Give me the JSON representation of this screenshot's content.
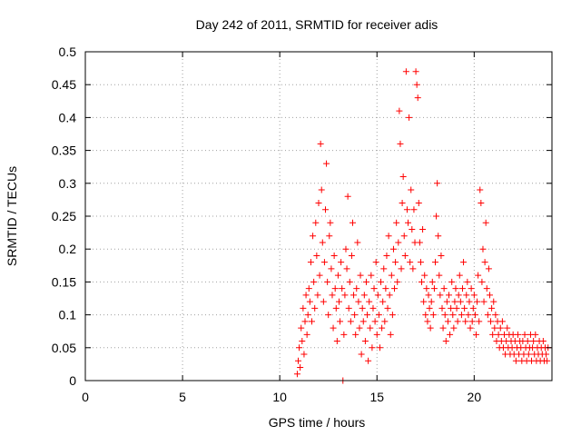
{
  "chart_data": {
    "type": "scatter",
    "title": "Day 242 of 2011, SRMTID for receiver adis",
    "xlabel": "GPS time / hours",
    "ylabel": "SRMTID / TECUs",
    "xlim": [
      0,
      24
    ],
    "ylim": [
      0,
      0.5
    ],
    "xticks": [
      0,
      5,
      10,
      15,
      20
    ],
    "yticks": [
      0,
      0.05,
      0.1,
      0.15,
      0.2,
      0.25,
      0.3,
      0.35,
      0.4,
      0.45,
      0.5
    ],
    "xtick_labels": [
      "0",
      "5",
      "10",
      "15",
      "20"
    ],
    "ytick_labels": [
      "0",
      "0.05",
      "0.1",
      "0.15",
      "0.2",
      "0.25",
      "0.3",
      "0.35",
      "0.4",
      "0.45",
      "0.5"
    ],
    "grid": true,
    "marker": "+",
    "series": [
      {
        "name": "SRMTID",
        "color": "#ff0000",
        "points": [
          [
            10.9,
            0.01
          ],
          [
            10.95,
            0.03
          ],
          [
            11.0,
            0.05
          ],
          [
            11.05,
            0.02
          ],
          [
            11.1,
            0.08
          ],
          [
            11.15,
            0.06
          ],
          [
            11.2,
            0.11
          ],
          [
            11.25,
            0.04
          ],
          [
            11.3,
            0.09
          ],
          [
            11.35,
            0.13
          ],
          [
            11.4,
            0.07
          ],
          [
            11.45,
            0.1
          ],
          [
            11.5,
            0.14
          ],
          [
            11.55,
            0.12
          ],
          [
            11.6,
            0.18
          ],
          [
            11.65,
            0.09
          ],
          [
            11.7,
            0.22
          ],
          [
            11.75,
            0.15
          ],
          [
            11.8,
            0.11
          ],
          [
            11.85,
            0.24
          ],
          [
            11.9,
            0.19
          ],
          [
            11.95,
            0.13
          ],
          [
            12.0,
            0.27
          ],
          [
            12.05,
            0.16
          ],
          [
            12.1,
            0.36
          ],
          [
            12.15,
            0.29
          ],
          [
            12.2,
            0.21
          ],
          [
            12.25,
            0.12
          ],
          [
            12.3,
            0.18
          ],
          [
            12.35,
            0.26
          ],
          [
            12.4,
            0.33
          ],
          [
            12.45,
            0.15
          ],
          [
            12.5,
            0.1
          ],
          [
            12.55,
            0.22
          ],
          [
            12.6,
            0.24
          ],
          [
            12.65,
            0.17
          ],
          [
            12.7,
            0.13
          ],
          [
            12.75,
            0.08
          ],
          [
            12.8,
            0.19
          ],
          [
            12.85,
            0.14
          ],
          [
            12.9,
            0.11
          ],
          [
            12.95,
            0.06
          ],
          [
            13.0,
            0.16
          ],
          [
            13.05,
            0.12
          ],
          [
            13.1,
            0.09
          ],
          [
            13.15,
            0.18
          ],
          [
            13.2,
            0.14
          ],
          [
            13.25,
            0.0
          ],
          [
            13.3,
            0.07
          ],
          [
            13.35,
            0.13
          ],
          [
            13.4,
            0.2
          ],
          [
            13.45,
            0.17
          ],
          [
            13.5,
            0.28
          ],
          [
            13.55,
            0.11
          ],
          [
            13.6,
            0.15
          ],
          [
            13.65,
            0.09
          ],
          [
            13.7,
            0.19
          ],
          [
            13.75,
            0.24
          ],
          [
            13.8,
            0.13
          ],
          [
            13.85,
            0.1
          ],
          [
            13.9,
            0.07
          ],
          [
            13.95,
            0.14
          ],
          [
            14.0,
            0.21
          ],
          [
            14.05,
            0.12
          ],
          [
            14.1,
            0.08
          ],
          [
            14.15,
            0.16
          ],
          [
            14.2,
            0.04
          ],
          [
            14.25,
            0.11
          ],
          [
            14.3,
            0.09
          ],
          [
            14.35,
            0.13
          ],
          [
            14.4,
            0.06
          ],
          [
            14.45,
            0.15
          ],
          [
            14.5,
            0.1
          ],
          [
            14.55,
            0.03
          ],
          [
            14.6,
            0.12
          ],
          [
            14.65,
            0.08
          ],
          [
            14.7,
            0.16
          ],
          [
            14.75,
            0.05
          ],
          [
            14.8,
            0.11
          ],
          [
            14.85,
            0.14
          ],
          [
            14.9,
            0.09
          ],
          [
            14.95,
            0.18
          ],
          [
            15.0,
            0.07
          ],
          [
            15.05,
            0.13
          ],
          [
            15.1,
            0.1
          ],
          [
            15.15,
            0.05
          ],
          [
            15.2,
            0.15
          ],
          [
            15.25,
            0.08
          ],
          [
            15.3,
            0.12
          ],
          [
            15.35,
            0.17
          ],
          [
            15.4,
            0.09
          ],
          [
            15.45,
            0.14
          ],
          [
            15.5,
            0.19
          ],
          [
            15.55,
            0.11
          ],
          [
            15.6,
            0.22
          ],
          [
            15.65,
            0.13
          ],
          [
            15.7,
            0.07
          ],
          [
            15.75,
            0.16
          ],
          [
            15.8,
            0.1
          ],
          [
            15.85,
            0.2
          ],
          [
            15.9,
            0.14
          ],
          [
            15.95,
            0.18
          ],
          [
            16.0,
            0.24
          ],
          [
            16.05,
            0.15
          ],
          [
            16.1,
            0.21
          ],
          [
            16.15,
            0.41
          ],
          [
            16.2,
            0.36
          ],
          [
            16.25,
            0.17
          ],
          [
            16.3,
            0.27
          ],
          [
            16.35,
            0.31
          ],
          [
            16.4,
            0.22
          ],
          [
            16.45,
            0.19
          ],
          [
            16.5,
            0.47
          ],
          [
            16.55,
            0.26
          ],
          [
            16.6,
            0.24
          ],
          [
            16.65,
            0.4
          ],
          [
            16.7,
            0.18
          ],
          [
            16.75,
            0.29
          ],
          [
            16.8,
            0.23
          ],
          [
            16.85,
            0.17
          ],
          [
            16.9,
            0.26
          ],
          [
            16.95,
            0.21
          ],
          [
            17.0,
            0.47
          ],
          [
            17.05,
            0.45
          ],
          [
            17.1,
            0.43
          ],
          [
            17.15,
            0.27
          ],
          [
            17.2,
            0.21
          ],
          [
            17.25,
            0.18
          ],
          [
            17.3,
            0.15
          ],
          [
            17.35,
            0.23
          ],
          [
            17.4,
            0.12
          ],
          [
            17.45,
            0.16
          ],
          [
            17.5,
            0.1
          ],
          [
            17.55,
            0.14
          ],
          [
            17.6,
            0.09
          ],
          [
            17.65,
            0.13
          ],
          [
            17.7,
            0.11
          ],
          [
            17.75,
            0.08
          ],
          [
            17.8,
            0.12
          ],
          [
            17.85,
            0.15
          ],
          [
            17.9,
            0.1
          ],
          [
            17.95,
            0.14
          ],
          [
            18.0,
            0.18
          ],
          [
            18.05,
            0.25
          ],
          [
            18.1,
            0.3
          ],
          [
            18.15,
            0.22
          ],
          [
            18.2,
            0.16
          ],
          [
            18.25,
            0.13
          ],
          [
            18.3,
            0.19
          ],
          [
            18.35,
            0.11
          ],
          [
            18.4,
            0.08
          ],
          [
            18.45,
            0.14
          ],
          [
            18.5,
            0.1
          ],
          [
            18.55,
            0.06
          ],
          [
            18.6,
            0.12
          ],
          [
            18.65,
            0.09
          ],
          [
            18.7,
            0.13
          ],
          [
            18.75,
            0.07
          ],
          [
            18.8,
            0.11
          ],
          [
            18.85,
            0.15
          ],
          [
            18.9,
            0.1
          ],
          [
            18.95,
            0.08
          ],
          [
            19.0,
            0.12
          ],
          [
            19.05,
            0.14
          ],
          [
            19.1,
            0.11
          ],
          [
            19.15,
            0.09
          ],
          [
            19.2,
            0.13
          ],
          [
            19.25,
            0.16
          ],
          [
            19.3,
            0.12
          ],
          [
            19.35,
            0.1
          ],
          [
            19.4,
            0.14
          ],
          [
            19.45,
            0.18
          ],
          [
            19.5,
            0.11
          ],
          [
            19.55,
            0.09
          ],
          [
            19.6,
            0.13
          ],
          [
            19.65,
            0.15
          ],
          [
            19.7,
            0.1
          ],
          [
            19.75,
            0.12
          ],
          [
            19.8,
            0.08
          ],
          [
            19.85,
            0.14
          ],
          [
            19.9,
            0.09
          ],
          [
            19.95,
            0.11
          ],
          [
            20.0,
            0.13
          ],
          [
            20.05,
            0.1
          ],
          [
            20.1,
            0.07
          ],
          [
            20.15,
            0.12
          ],
          [
            20.2,
            0.16
          ],
          [
            20.25,
            0.09
          ],
          [
            20.3,
            0.29
          ],
          [
            20.35,
            0.27
          ],
          [
            20.4,
            0.15
          ],
          [
            20.45,
            0.2
          ],
          [
            20.5,
            0.12
          ],
          [
            20.55,
            0.18
          ],
          [
            20.6,
            0.24
          ],
          [
            20.65,
            0.14
          ],
          [
            20.7,
            0.1
          ],
          [
            20.75,
            0.17
          ],
          [
            20.8,
            0.13
          ],
          [
            20.85,
            0.09
          ],
          [
            20.9,
            0.11
          ],
          [
            20.95,
            0.07
          ],
          [
            21.0,
            0.12
          ],
          [
            21.05,
            0.08
          ],
          [
            21.1,
            0.1
          ],
          [
            21.15,
            0.06
          ],
          [
            21.2,
            0.09
          ],
          [
            21.25,
            0.07
          ],
          [
            21.3,
            0.05
          ],
          [
            21.35,
            0.08
          ],
          [
            21.4,
            0.06
          ],
          [
            21.45,
            0.09
          ],
          [
            21.5,
            0.05
          ],
          [
            21.55,
            0.07
          ],
          [
            21.6,
            0.04
          ],
          [
            21.65,
            0.06
          ],
          [
            21.7,
            0.08
          ],
          [
            21.75,
            0.05
          ],
          [
            21.8,
            0.07
          ],
          [
            21.85,
            0.04
          ],
          [
            21.9,
            0.06
          ],
          [
            21.95,
            0.05
          ],
          [
            22.0,
            0.07
          ],
          [
            22.05,
            0.04
          ],
          [
            22.1,
            0.06
          ],
          [
            22.15,
            0.03
          ],
          [
            22.2,
            0.05
          ],
          [
            22.25,
            0.07
          ],
          [
            22.3,
            0.04
          ],
          [
            22.35,
            0.06
          ],
          [
            22.4,
            0.05
          ],
          [
            22.45,
            0.03
          ],
          [
            22.5,
            0.06
          ],
          [
            22.55,
            0.04
          ],
          [
            22.6,
            0.07
          ],
          [
            22.65,
            0.05
          ],
          [
            22.7,
            0.03
          ],
          [
            22.75,
            0.06
          ],
          [
            22.8,
            0.04
          ],
          [
            22.85,
            0.05
          ],
          [
            22.9,
            0.07
          ],
          [
            22.95,
            0.03
          ],
          [
            23.0,
            0.05
          ],
          [
            23.05,
            0.06
          ],
          [
            23.1,
            0.04
          ],
          [
            23.15,
            0.07
          ],
          [
            23.2,
            0.03
          ],
          [
            23.25,
            0.05
          ],
          [
            23.3,
            0.04
          ],
          [
            23.35,
            0.06
          ],
          [
            23.4,
            0.03
          ],
          [
            23.45,
            0.05
          ],
          [
            23.5,
            0.04
          ],
          [
            23.55,
            0.06
          ],
          [
            23.6,
            0.03
          ],
          [
            23.65,
            0.05
          ],
          [
            23.7,
            0.04
          ],
          [
            23.75,
            0.03
          ],
          [
            23.8,
            0.05
          ]
        ]
      }
    ]
  }
}
